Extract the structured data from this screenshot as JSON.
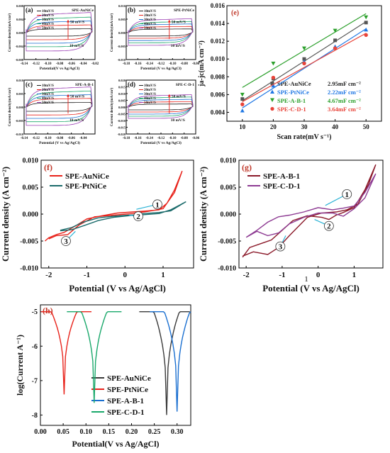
{
  "chart_data": [
    {
      "panel": "(a)",
      "type": "line",
      "label": "SPE-AuNiCe",
      "xlabel": "Potential(V vs Ag/AgCl)",
      "ylabel": "Current density(mA/cm²)",
      "xlim": [
        -0.14,
        -0.02
      ],
      "ylim": [
        -0.008,
        0.008
      ],
      "xticks": [
        "-0.14",
        "-0.12",
        "-0.10",
        "-0.08",
        "-0.06",
        "-0.04",
        "-0.02"
      ],
      "yticks": [
        "-0.008",
        "-0.004",
        "0.000",
        "0.004",
        "0.008"
      ],
      "legend": [
        "10mV/S",
        "20mV/S",
        "30mV/S",
        "40mV/S",
        "50mV/S"
      ],
      "annotations": [
        "50 mV/S",
        "10 mV/S"
      ],
      "series": [
        {
          "name": "10mV/S",
          "amplitude": 0.001
        },
        {
          "name": "20mV/S",
          "amplitude": 0.002
        },
        {
          "name": "30mV/S",
          "amplitude": 0.003
        },
        {
          "name": "40mV/S",
          "amplitude": 0.004
        },
        {
          "name": "50mV/S",
          "amplitude": 0.0052
        }
      ]
    },
    {
      "panel": "(b)",
      "type": "line",
      "label": "SPE-PtNiCe",
      "xlabel": "Potential (V vs Ag/AgCl)",
      "ylabel": "Current density(mA/cm²)",
      "xlim": [
        -0.18,
        -0.06
      ],
      "ylim": [
        -0.01,
        0.01
      ],
      "xticks": [
        "-0.18",
        "-0.16",
        "-0.14",
        "-0.12",
        "-0.10",
        "-0.08",
        "-0.06"
      ],
      "yticks": [
        "-0.010",
        "-0.005",
        "0.000",
        "0.005",
        "0.010"
      ],
      "legend": [
        "10mV/S",
        "20mV/S",
        "30mV/S",
        "40mV/S",
        "50mV/S"
      ],
      "annotations": [
        "50 mV/S",
        "10 mV/S"
      ],
      "series": [
        {
          "name": "10mV/S",
          "amplitude": 0.0012
        },
        {
          "name": "20mV/S",
          "amplitude": 0.002
        },
        {
          "name": "30mV/S",
          "amplitude": 0.0028
        },
        {
          "name": "40mV/S",
          "amplitude": 0.0036
        },
        {
          "name": "50mV/S",
          "amplitude": 0.0045
        }
      ]
    },
    {
      "panel": "(c)",
      "type": "line",
      "label": "SPE-A-B-1",
      "xlabel": "Potential (V vs Ag/AgCl)",
      "ylabel": "Current density(mA/cm²)",
      "xlim": [
        -0.14,
        -0.02
      ],
      "ylim": [
        -0.01,
        0.01
      ],
      "xticks": [
        "-0.14",
        "-0.12",
        "-0.10",
        "-0.08",
        "-0.06",
        "-0.04"
      ],
      "yticks": [
        "-0.010",
        "-0.005",
        "0.000",
        "0.005",
        "0.010"
      ],
      "legend": [
        "10mV/S",
        "20mV/S",
        "30mV/S",
        "40mV/S",
        "50mV/S"
      ],
      "annotations": [
        "50 mV/S",
        "10 mV/S"
      ],
      "series": [
        {
          "name": "10mV/S",
          "amplitude": 0.0015
        },
        {
          "name": "20mV/S",
          "amplitude": 0.0028
        },
        {
          "name": "30mV/S",
          "amplitude": 0.004
        },
        {
          "name": "40mV/S",
          "amplitude": 0.0052
        },
        {
          "name": "50mV/S",
          "amplitude": 0.0065
        }
      ]
    },
    {
      "panel": "(d)",
      "type": "line",
      "label": "SPE-C-D-1",
      "xlabel": "Potential (V vs Ag/AgCl)",
      "ylabel": "Current density(mA/cm²)",
      "xlim": [
        -0.18,
        -0.06
      ],
      "ylim": [
        -0.02,
        0.02
      ],
      "xticks": [
        "-0.18",
        "-0.16",
        "-0.14",
        "-0.12",
        "-0.10",
        "-0.08",
        "-0.06"
      ],
      "yticks": [
        "-0.020",
        "-0.015",
        "-0.010",
        "-0.005",
        "0.000",
        "0.005",
        "0.010",
        "0.015",
        "0.020"
      ],
      "legend": [
        "10mV/S",
        "20mV/S",
        "30mV/S",
        "40mV/S",
        "50mV/S"
      ],
      "annotations": [
        "50 mV/S",
        "10 mV/S"
      ],
      "series": [
        {
          "name": "10mV/S",
          "amplitude": 0.002
        },
        {
          "name": "20mV/S",
          "amplitude": 0.0035
        },
        {
          "name": "30mV/S",
          "amplitude": 0.005
        },
        {
          "name": "40mV/S",
          "amplitude": 0.0065
        },
        {
          "name": "50mV/S",
          "amplitude": 0.008
        }
      ]
    },
    {
      "panel": "(e)",
      "type": "scatter",
      "xlabel": "Scan rate(mV s⁻¹)",
      "ylabel": "ja-jc(mA cm⁻²)",
      "xlim": [
        5,
        55
      ],
      "ylim": [
        0.003,
        0.016
      ],
      "xticks": [
        "10",
        "20",
        "30",
        "40",
        "50"
      ],
      "yticks": [
        "0.004",
        "0.006",
        "0.008",
        "0.010",
        "0.012",
        "0.014",
        "0.016"
      ],
      "x": [
        10,
        20,
        30,
        40,
        50
      ],
      "series": [
        {
          "name": "SPE-AuNiCe",
          "capacitance": "2.95mF cm⁻²",
          "color": "#555555",
          "marker": "square",
          "values": [
            0.0055,
            0.0078,
            0.01,
            0.0121,
            0.0141
          ],
          "fit": [
            0.0053,
            0.0142
          ]
        },
        {
          "name": "SPE-PtNiCe",
          "capacitance": "2.22mF cm⁻²",
          "color": "#1f77e4",
          "marker": "triangle-up",
          "values": [
            0.0042,
            0.007,
            0.0097,
            0.0114,
            0.0133
          ],
          "fit": [
            0.0045,
            0.0134
          ]
        },
        {
          "name": "SPE-A-B-1",
          "capacitance": "4.67mF cm⁻²",
          "color": "#2ca02c",
          "marker": "triangle-down",
          "values": [
            0.006,
            0.0095,
            0.0112,
            0.0132,
            0.0147
          ],
          "fit": [
            0.0068,
            0.0151
          ]
        },
        {
          "name": "SPE-C-D-1",
          "capacitance": "3.64mF cm⁻²",
          "color": "#e8443a",
          "marker": "circle",
          "values": [
            0.0049,
            0.0079,
            0.0095,
            0.0112,
            0.0127
          ],
          "fit": [
            0.0052,
            0.0129
          ]
        }
      ]
    },
    {
      "panel": "(f)",
      "type": "line",
      "xlabel": "Potential (V vs Ag/AgCl)",
      "ylabel": "Current density (A cm⁻²)",
      "xlim": [
        -2.2,
        1.8
      ],
      "ylim": [
        -0.01,
        0.01
      ],
      "xticks": [
        "-2",
        "-1",
        "0",
        "1"
      ],
      "yticks": [
        "-0.010",
        "-0.005",
        "0.000",
        "0.005",
        "0.010"
      ],
      "annotations": [
        "1",
        "2",
        "3"
      ],
      "series": [
        {
          "name": "SPE-AuNiCe",
          "color": "#e8231b"
        },
        {
          "name": "SPE-PtNiCe",
          "color": "#1b6b6b"
        }
      ]
    },
    {
      "panel": "(g)",
      "type": "line",
      "xlabel": "Potential (V vs Ag/AgCl)",
      "ylabel": "Current density (A cm⁻²)",
      "xlim": [
        -2.2,
        1.8
      ],
      "ylim": [
        -0.01,
        0.01
      ],
      "xticks": [
        "-2",
        "-1",
        "0",
        "1"
      ],
      "yticks": [
        "-0.010",
        "-0.005",
        "0.000",
        "0.005",
        "0.010"
      ],
      "annotations": [
        "1",
        "2",
        "3"
      ],
      "extra_text": "1",
      "series": [
        {
          "name": "SPE-A-B-1",
          "color": "#8b1a2a"
        },
        {
          "name": "SPE-C-D-1",
          "color": "#8e3c93"
        }
      ]
    },
    {
      "panel": "(h)",
      "type": "line",
      "xlabel": "Potential(V vs Ag/AgCl)",
      "ylabel": "log(Current A⁻¹)",
      "xlim": [
        0.0,
        0.33
      ],
      "ylim": [
        -8.3,
        -4.8
      ],
      "xticks": [
        "0.00",
        "0.05",
        "0.10",
        "0.15",
        "0.20",
        "0.25",
        "0.30"
      ],
      "yticks": [
        "-5",
        "-6",
        "-7",
        "-8"
      ],
      "series": [
        {
          "name": "SPE-AuNiCe",
          "color": "#3a3a3a",
          "ecorr": 0.277,
          "min": -8.0
        },
        {
          "name": "SPE-PtNiCe",
          "color": "#e8231b",
          "ecorr": 0.052,
          "min": -7.4
        },
        {
          "name": "SPE-A-B-1",
          "color": "#1a6fd0",
          "ecorr": 0.3,
          "min": -7.9
        },
        {
          "name": "SPE-C-D-1",
          "color": "#1aa86b",
          "ecorr": 0.118,
          "min": -7.65
        }
      ]
    }
  ]
}
